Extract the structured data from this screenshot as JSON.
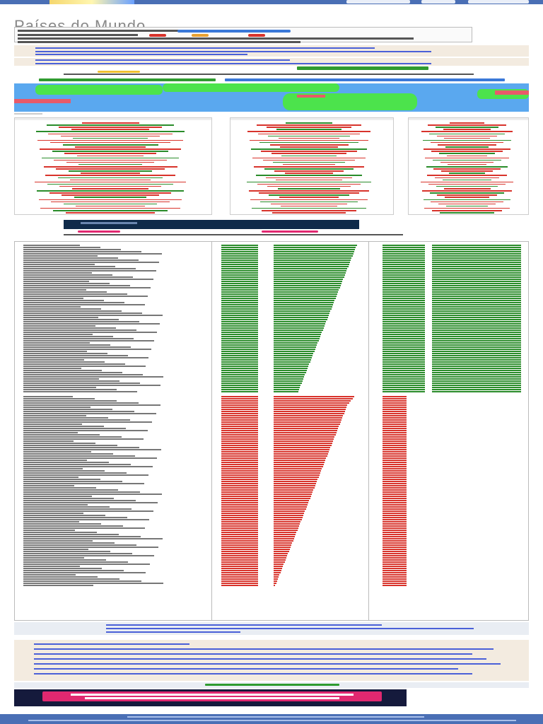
{
  "page": {
    "title": "Países do Mundo"
  },
  "colors": {
    "accent": "#4a6fb5",
    "positive": "#2a8c2a",
    "negative": "#d8332b",
    "ocean": "#5aa8ef",
    "land": "#4ce34c"
  },
  "ranking": {
    "positive_fraction": [
      0.98,
      0.97,
      0.96,
      0.95,
      0.94,
      0.93,
      0.92,
      0.91,
      0.9,
      0.89,
      0.88,
      0.87,
      0.86,
      0.85,
      0.84,
      0.83,
      0.82,
      0.81,
      0.8,
      0.79,
      0.78,
      0.77,
      0.76,
      0.75,
      0.74,
      0.73,
      0.72,
      0.71,
      0.7,
      0.69,
      0.68,
      0.67,
      0.66,
      0.65,
      0.64,
      0.63,
      0.62,
      0.61,
      0.6,
      0.59,
      0.58,
      0.57,
      0.56,
      0.55,
      0.54,
      0.53,
      0.52,
      0.51,
      0.5,
      0.49,
      0.48,
      0.47,
      0.46,
      0.45,
      0.44,
      0.43,
      0.42,
      0.41,
      0.4,
      0.39,
      0.38,
      0.37,
      0.36,
      0.35,
      0.34,
      0.33,
      0.32,
      0.31,
      0.3,
      0.29
    ],
    "negative_fraction": [
      0.95,
      0.93,
      0.91,
      0.89,
      0.87,
      0.86,
      0.85,
      0.84,
      0.83,
      0.82,
      0.81,
      0.8,
      0.79,
      0.78,
      0.77,
      0.76,
      0.75,
      0.74,
      0.73,
      0.72,
      0.71,
      0.7,
      0.69,
      0.68,
      0.67,
      0.66,
      0.65,
      0.64,
      0.63,
      0.62,
      0.61,
      0.6,
      0.59,
      0.58,
      0.57,
      0.56,
      0.55,
      0.54,
      0.53,
      0.52,
      0.51,
      0.5,
      0.49,
      0.48,
      0.47,
      0.46,
      0.45,
      0.44,
      0.43,
      0.42,
      0.41,
      0.4,
      0.39,
      0.38,
      0.37,
      0.36,
      0.35,
      0.34,
      0.33,
      0.32,
      0.31,
      0.3,
      0.29,
      0.28,
      0.27,
      0.26,
      0.25,
      0.24,
      0.23,
      0.22,
      0.21,
      0.2,
      0.19,
      0.18,
      0.17,
      0.16,
      0.15,
      0.14,
      0.13,
      0.12,
      0.11,
      0.1,
      0.09,
      0.08,
      0.07,
      0.06,
      0.05,
      0.04,
      0.03,
      0.02
    ]
  }
}
